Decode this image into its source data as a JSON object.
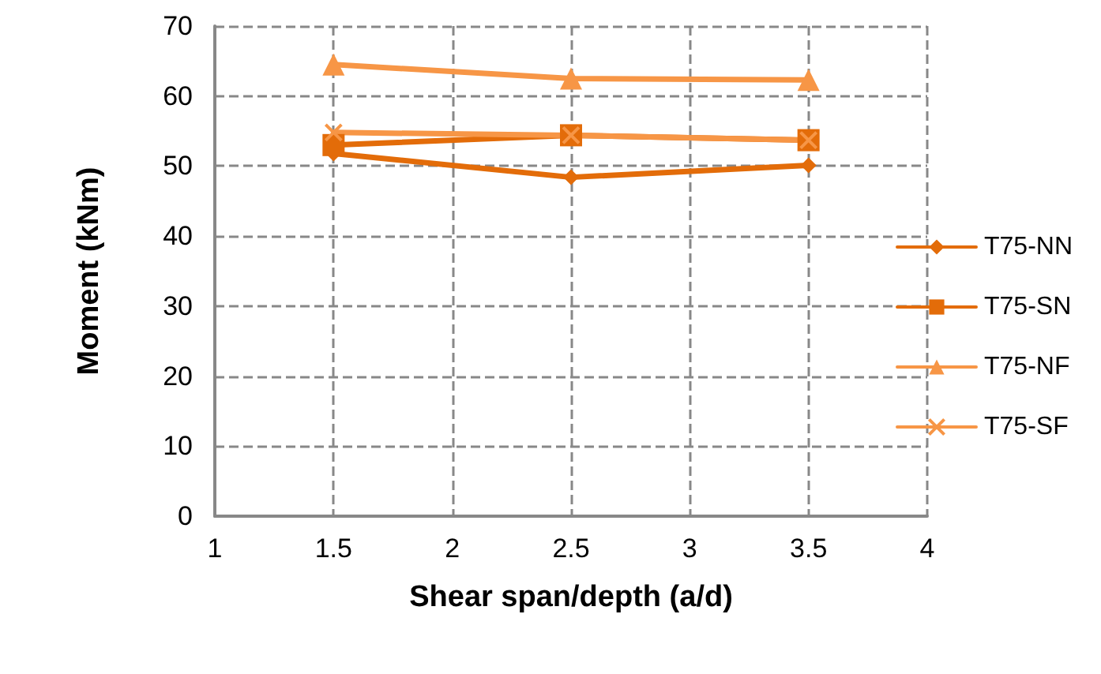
{
  "chart_data": {
    "type": "line",
    "xlabel": "Shear span/depth (a/d)",
    "ylabel": "Moment (kNm)",
    "x": [
      1.5,
      2.5,
      3.5
    ],
    "xlim": [
      1,
      4
    ],
    "xticks": [
      1,
      1.5,
      2,
      2.5,
      3,
      3.5,
      4
    ],
    "ylim": [
      0,
      70
    ],
    "yticks": [
      0,
      10,
      20,
      30,
      40,
      50,
      60,
      70
    ],
    "grid": true,
    "line_style": "solid",
    "legend": "right",
    "series": [
      {
        "name": "T75-NN",
        "color": "#e36c09",
        "marker": "diamond",
        "values": [
          51.8,
          48.4,
          50.1
        ]
      },
      {
        "name": "T75-SN",
        "color": "#e36c09",
        "marker": "square",
        "values": [
          53,
          54.4,
          53.7
        ]
      },
      {
        "name": "T75-NF",
        "color": "#f79646",
        "marker": "triangle",
        "values": [
          64.5,
          62.5,
          62.3
        ]
      },
      {
        "name": "T75-SF",
        "color": "#f79646",
        "marker": "cross",
        "values": [
          54.8,
          54.4,
          53.7
        ]
      }
    ]
  }
}
